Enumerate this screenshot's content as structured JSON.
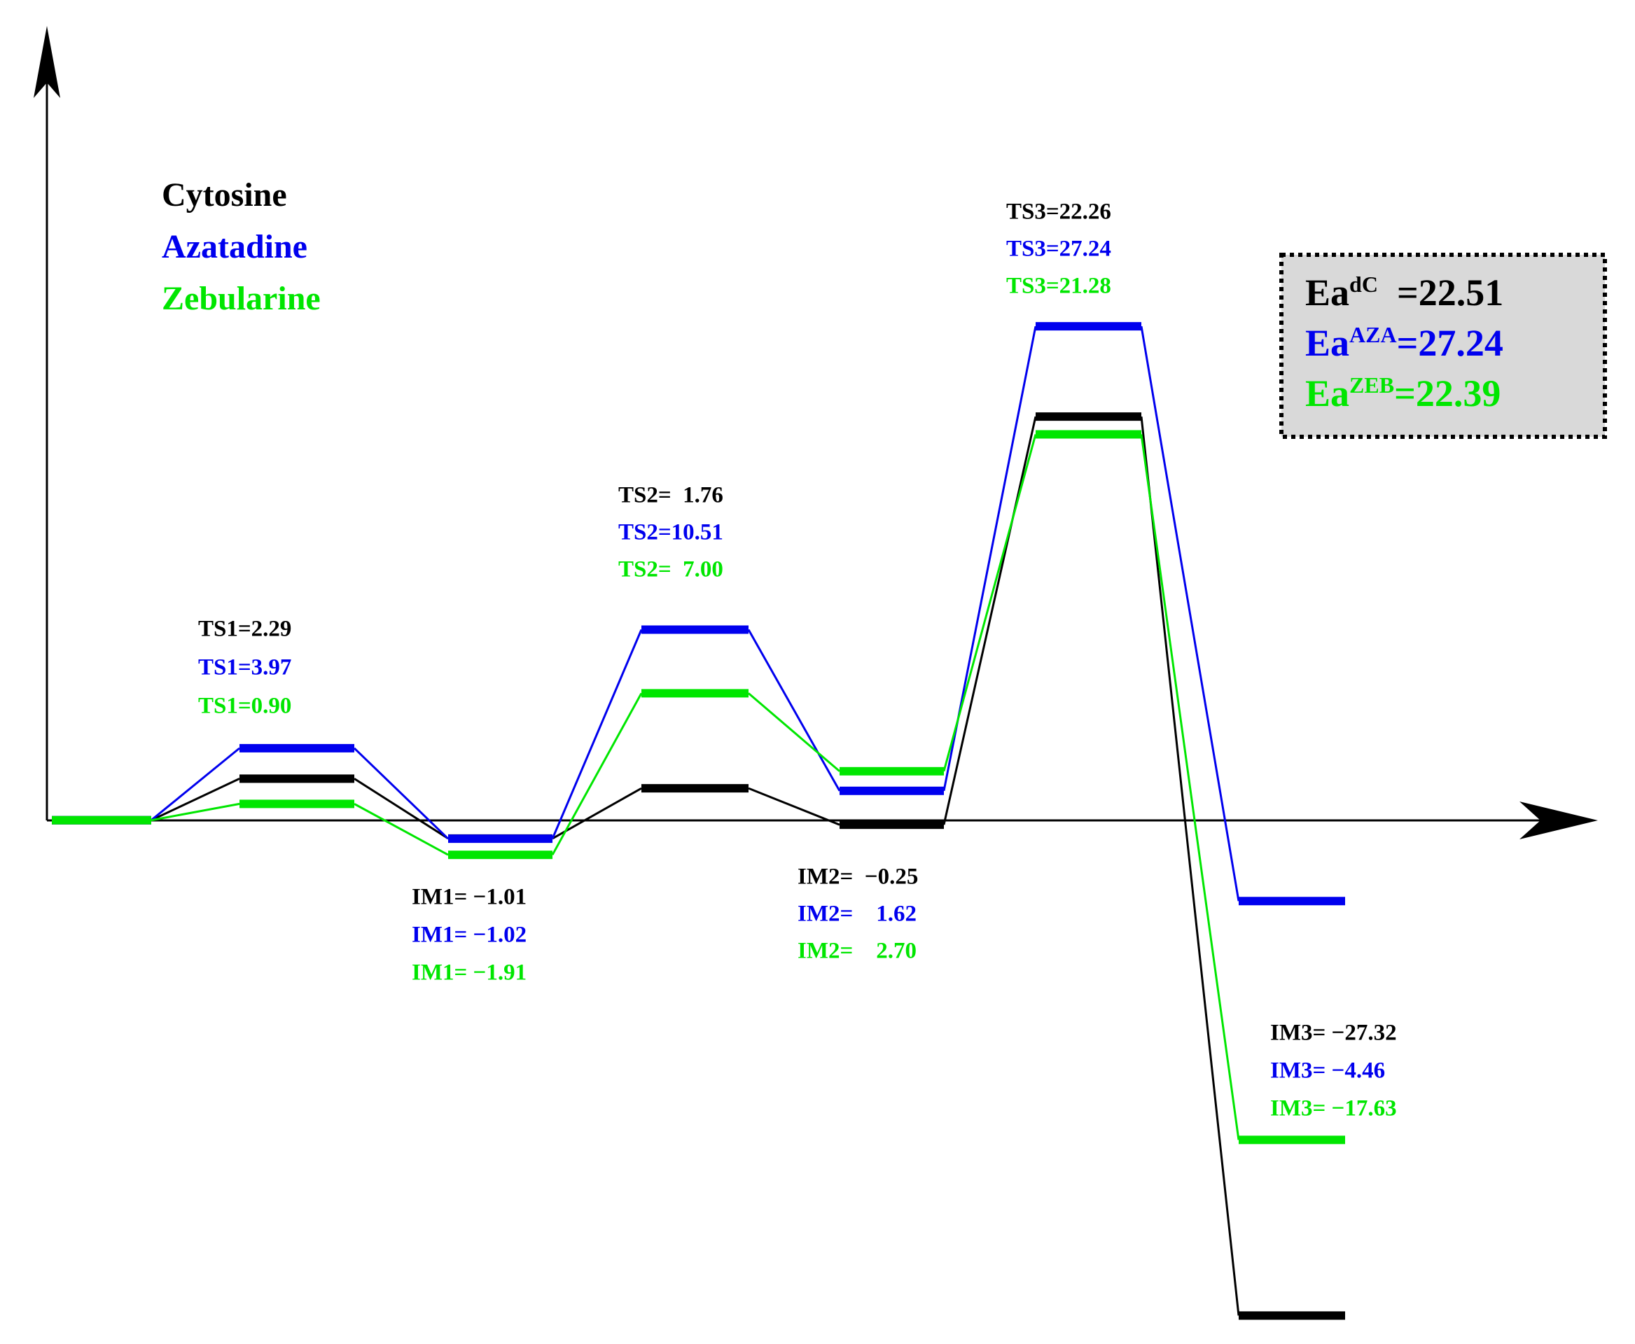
{
  "chart_data": {
    "type": "energy_profile",
    "series": [
      {
        "name": "Cytosine",
        "color": "#000000",
        "values": [
          0,
          2.29,
          -1.01,
          1.76,
          -0.25,
          22.26,
          -27.32
        ],
        "value_labels": [
          null,
          "TS1=2.29",
          "IM1= −1.01",
          "TS2=  1.76",
          "IM2=  −0.25",
          "TS3=22.26",
          "IM3= −27.32"
        ]
      },
      {
        "name": "Azatadine",
        "color": "#0000ee",
        "values": [
          0,
          3.97,
          -1.02,
          10.51,
          1.62,
          27.24,
          -4.46
        ],
        "value_labels": [
          null,
          "TS1=3.97",
          "IM1= −1.02",
          "TS2=10.51",
          "IM2=    1.62",
          "TS3=27.24",
          "IM3= −4.46"
        ]
      },
      {
        "name": "Zebularine",
        "color": "#00e600",
        "values": [
          0,
          0.9,
          -1.91,
          7.0,
          2.7,
          21.28,
          -17.63
        ],
        "value_labels": [
          null,
          "TS1=0.90",
          "IM1= −1.91",
          "TS2=  7.00",
          "IM2=    2.70",
          "TS3=21.28",
          "IM3= −17.63"
        ]
      }
    ],
    "ylim": [
      -28,
      44
    ],
    "ea": [
      {
        "base": "Ea",
        "sup": "dC",
        "text": "  =22.51"
      },
      {
        "base": "Ea",
        "sup": "AZA",
        "text": "=27.24"
      },
      {
        "base": "Ea",
        "sup": "ZEB",
        "text": "=22.39"
      }
    ]
  }
}
